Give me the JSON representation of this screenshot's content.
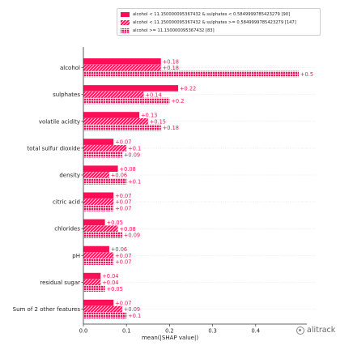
{
  "chart_data": {
    "type": "bar",
    "orientation": "horizontal",
    "xlabel": "mean(|SHAP value|)",
    "xlim": [
      0,
      0.5
    ],
    "xticks": [
      "0.0",
      "0.1",
      "0.2",
      "0.3",
      "0.4"
    ],
    "xtick_values": [
      0,
      0.1,
      0.2,
      0.3,
      0.4
    ],
    "grid": "none",
    "legend_position": "top-center",
    "categories": [
      "alcohol",
      "sulphates",
      "volatile acidity",
      "total sulfur dioxide",
      "density",
      "citric acid",
      "chlorides",
      "pH",
      "residual sugar",
      "Sum of 2 other features"
    ],
    "series": [
      {
        "name": "alcohol < 11.150000095367432 & sulphates < 0.5849999785423279 [90]",
        "pattern": "solid",
        "values": [
          0.18,
          0.22,
          0.13,
          0.07,
          0.08,
          0.07,
          0.05,
          0.06,
          0.04,
          0.07
        ],
        "labels": [
          "+0.18",
          "+0.22",
          "+0.13",
          "+0.07",
          "+0.08",
          "+0.07",
          "+0.05",
          "+0.06",
          "+0.04",
          "+0.07"
        ]
      },
      {
        "name": "alcohol < 11.150000095367432 & sulphates >= 0.5849999785423279 [147]",
        "pattern": "diagonal-hatch",
        "values": [
          0.18,
          0.14,
          0.15,
          0.1,
          0.06,
          0.07,
          0.08,
          0.07,
          0.04,
          0.09
        ],
        "labels": [
          "+0.18",
          "+0.14",
          "+0.15",
          "+0.1",
          "+0.06",
          "+0.07",
          "+0.08",
          "+0.07",
          "+0.04",
          "+0.09"
        ]
      },
      {
        "name": "alcohol >= 11.150000095367432 [83]",
        "pattern": "grid-hatch",
        "values": [
          0.5,
          0.2,
          0.18,
          0.09,
          0.1,
          0.07,
          0.09,
          0.07,
          0.05,
          0.1
        ],
        "labels": [
          "+0.5",
          "+0.2",
          "+0.18",
          "+0.09",
          "+0.1",
          "+0.07",
          "+0.09",
          "+0.07",
          "+0.05",
          "+0.1"
        ]
      }
    ],
    "colors": {
      "bar": "#ff0d57",
      "label": "#ff0d57",
      "row_line": "#dddddd",
      "axis": "#333333"
    }
  },
  "watermark": {
    "text": "alitrack",
    "icon": "wechat-icon"
  }
}
